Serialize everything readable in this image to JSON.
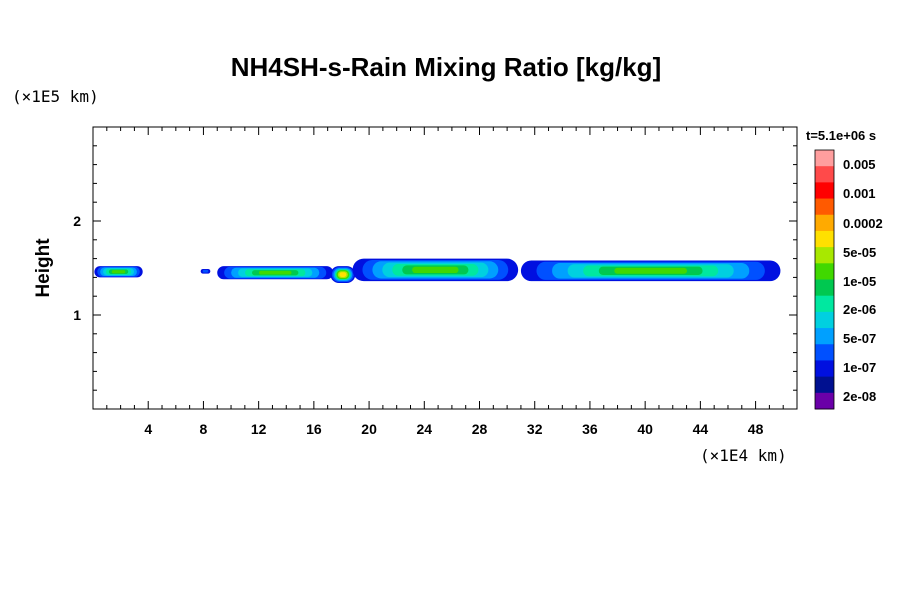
{
  "chart_data": {
    "type": "heatmap",
    "title": "NH4SH-s-Rain Mixing Ratio [kg/kg]",
    "time_label": "t=5.1e+06 s",
    "xlabel": "",
    "ylabel": "Height",
    "x_unit": "(×1E4 km)",
    "y_unit": "(×1E5 km)",
    "xlim": [
      0,
      51
    ],
    "ylim": [
      0,
      3
    ],
    "x_ticks": [
      4,
      8,
      12,
      16,
      20,
      24,
      28,
      32,
      36,
      40,
      44,
      48
    ],
    "y_ticks": [
      1,
      2
    ],
    "colorbar": {
      "labels": [
        "0.005",
        "0.001",
        "0.0002",
        "5e-05",
        "1e-05",
        "2e-06",
        "5e-07",
        "1e-07",
        "2e-08"
      ],
      "colors": [
        "#ff9e9e",
        "#ff4a4a",
        "#ff0000",
        "#ff5a00",
        "#ffaa00",
        "#ffe000",
        "#a8e800",
        "#40d800",
        "#00c850",
        "#00e8a0",
        "#00d0e0",
        "#00a0ff",
        "#0050ff",
        "#0010e0",
        "#001090",
        "#6a00a8"
      ]
    },
    "bands": [
      {
        "x": [
          0.1,
          3.6
        ],
        "y": [
          1.4,
          1.52
        ],
        "peak": "1e-05"
      },
      {
        "x": [
          7.8,
          8.5
        ],
        "y": [
          1.44,
          1.49
        ],
        "peak": "1e-07"
      },
      {
        "x": [
          9.0,
          17.4
        ],
        "y": [
          1.38,
          1.52
        ],
        "peak": "1e-05"
      },
      {
        "x": [
          17.2,
          19.0
        ],
        "y": [
          1.34,
          1.52
        ],
        "peak": "5e-05"
      },
      {
        "x": [
          18.8,
          30.8
        ],
        "y": [
          1.36,
          1.6
        ],
        "peak": "1e-05"
      },
      {
        "x": [
          31.0,
          49.8
        ],
        "y": [
          1.36,
          1.58
        ],
        "peak": "1e-05"
      }
    ]
  }
}
